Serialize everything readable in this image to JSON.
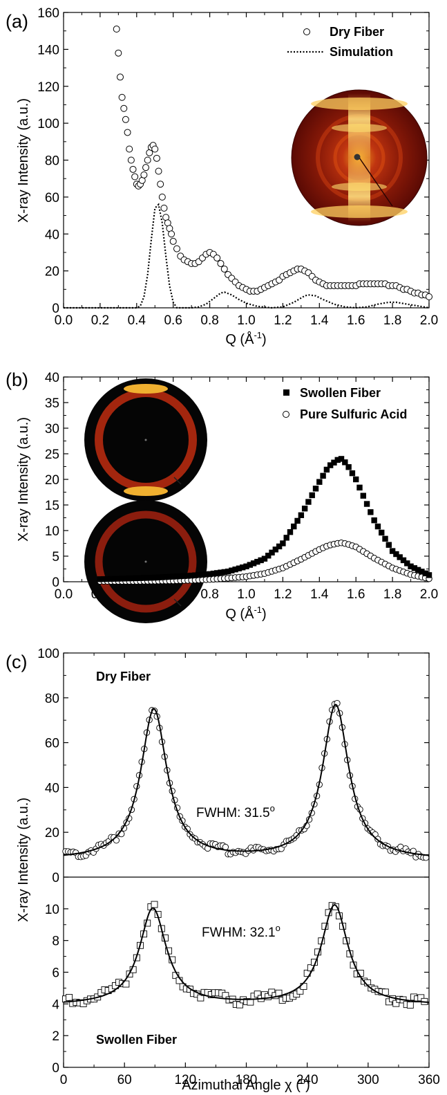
{
  "panels": [
    {
      "label": "(a)",
      "xlabel": "Q (Å",
      "xlabel_sup": "-1",
      "xlabel_tail": ")",
      "ylabel": "X-ray Intensity (a.u.)",
      "legend": [
        "Dry Fiber",
        "Simulation"
      ]
    },
    {
      "label": "(b)",
      "xlabel": "Q (Å",
      "xlabel_sup": "-1",
      "xlabel_tail": ")",
      "ylabel": "X-ray Intensity (a.u.)",
      "legend": [
        "Swollen Fiber",
        "Pure Sulfuric Acid"
      ]
    },
    {
      "label": "(c)",
      "xlabel": "Azimuthal Angle χ (",
      "xlabel_sup": "o",
      "xlabel_tail": ")",
      "ylabel": "X-ray Intensity (a.u.)",
      "top_title": "Dry Fiber",
      "bottom_title": "Swollen Fiber",
      "fwhm_top": "FWHM: 31.5",
      "fwhm_top_sup": "o",
      "fwhm_bottom": "FWHM: 32.1",
      "fwhm_bottom_sup": "o"
    }
  ],
  "chart_data": [
    {
      "type": "scatter",
      "title": "",
      "xlabel": "Q (Å-1)",
      "ylabel": "X-ray Intensity (a.u.)",
      "xlim": [
        0.0,
        2.0
      ],
      "ylim": [
        0,
        160
      ],
      "xticks": [
        0.0,
        0.2,
        0.4,
        0.6,
        0.8,
        1.0,
        1.2,
        1.4,
        1.6,
        1.8,
        2.0
      ],
      "yticks": [
        0,
        20,
        40,
        60,
        80,
        100,
        120,
        140,
        160
      ],
      "legend_position": "top-right",
      "inset": "2D diffraction pattern (dry fiber)",
      "series": [
        {
          "name": "Dry Fiber",
          "marker": "open-circle",
          "x": [
            0.29,
            0.3,
            0.31,
            0.32,
            0.33,
            0.34,
            0.35,
            0.36,
            0.37,
            0.38,
            0.39,
            0.4,
            0.41,
            0.42,
            0.43,
            0.44,
            0.45,
            0.46,
            0.47,
            0.48,
            0.49,
            0.5,
            0.51,
            0.52,
            0.53,
            0.54,
            0.55,
            0.56,
            0.57,
            0.58,
            0.59,
            0.6,
            0.62,
            0.64,
            0.66,
            0.68,
            0.7,
            0.72,
            0.74,
            0.76,
            0.78,
            0.8,
            0.82,
            0.84,
            0.86,
            0.88,
            0.9,
            0.92,
            0.94,
            0.96,
            0.98,
            1.0,
            1.02,
            1.04,
            1.06,
            1.08,
            1.1,
            1.12,
            1.14,
            1.16,
            1.18,
            1.2,
            1.22,
            1.24,
            1.26,
            1.28,
            1.3,
            1.32,
            1.34,
            1.36,
            1.38,
            1.4,
            1.42,
            1.44,
            1.46,
            1.48,
            1.5,
            1.52,
            1.54,
            1.56,
            1.58,
            1.6,
            1.62,
            1.64,
            1.66,
            1.68,
            1.7,
            1.72,
            1.74,
            1.76,
            1.78,
            1.8,
            1.82,
            1.84,
            1.86,
            1.88,
            1.9,
            1.92,
            1.94,
            1.96,
            1.98,
            2.0
          ],
          "y": [
            151,
            138,
            125,
            114,
            108,
            102,
            95,
            86,
            80,
            75,
            71,
            67,
            66,
            67,
            69,
            72,
            76,
            80,
            84,
            87,
            88,
            86,
            81,
            74,
            67,
            60,
            54,
            49,
            46,
            43,
            40,
            36,
            32,
            28,
            26,
            25,
            24,
            24,
            25,
            27,
            29,
            30,
            29,
            27,
            24,
            21,
            18,
            16,
            14,
            12,
            11,
            10,
            9,
            9,
            9,
            10,
            11,
            12,
            13,
            14,
            15,
            17,
            18,
            19,
            20,
            21,
            21,
            20,
            19,
            17,
            15,
            14,
            13,
            12,
            12,
            12,
            12,
            12,
            12,
            12,
            12,
            12,
            13,
            13,
            13,
            13,
            13,
            13,
            13,
            13,
            12,
            12,
            12,
            11,
            10,
            10,
            9,
            8,
            8,
            7,
            7,
            6
          ]
        },
        {
          "name": "Simulation",
          "line": "dotted",
          "x": [
            0.0,
            0.4,
            0.42,
            0.44,
            0.46,
            0.48,
            0.5,
            0.52,
            0.54,
            0.56,
            0.58,
            0.6,
            0.62,
            0.7,
            0.74,
            0.78,
            0.82,
            0.86,
            0.88,
            0.92,
            0.96,
            1.0,
            1.06,
            1.14,
            1.2,
            1.26,
            1.32,
            1.34,
            1.38,
            1.42,
            1.48,
            1.54,
            1.6,
            1.66,
            1.72,
            1.78,
            1.82,
            1.88,
            1.94,
            2.0
          ],
          "y": [
            0,
            0,
            1,
            6,
            18,
            37,
            54,
            56,
            46,
            28,
            12,
            3,
            0,
            0,
            0.5,
            2,
            5,
            8,
            8.5,
            7,
            4.5,
            2.5,
            0.8,
            0,
            0.5,
            3,
            6.5,
            7,
            6.5,
            4.5,
            2,
            0.5,
            0,
            0.5,
            2,
            3,
            3,
            2,
            1,
            0
          ]
        }
      ]
    },
    {
      "type": "scatter",
      "title": "",
      "xlabel": "Q (Å-1)",
      "ylabel": "X-ray Intensity (a.u.)",
      "xlim": [
        0.0,
        2.0
      ],
      "ylim": [
        0,
        40
      ],
      "xticks": [
        0.0,
        0.2,
        0.4,
        0.6,
        0.8,
        1.0,
        1.2,
        1.4,
        1.6,
        1.8,
        2.0
      ],
      "yticks": [
        0,
        5,
        10,
        15,
        20,
        25,
        30,
        35,
        40
      ],
      "legend_position": "top-right",
      "inset": "2D diffraction patterns (swollen fiber, pure sulfuric acid)",
      "series": [
        {
          "name": "Swollen Fiber",
          "marker": "filled-square",
          "peak": 1.52,
          "amplitude": 23.5,
          "x_range": [
            0.2,
            2.0
          ],
          "x": [
            0.2,
            0.3,
            0.4,
            0.5,
            0.6,
            0.7,
            0.8,
            0.9,
            1.0,
            1.1,
            1.2,
            1.3,
            1.4,
            1.45,
            1.5,
            1.52,
            1.55,
            1.6,
            1.7,
            1.8,
            1.9,
            2.0
          ],
          "y": [
            0.5,
            0.6,
            0.7,
            0.8,
            1.0,
            1.2,
            1.5,
            2.0,
            3.0,
            4.5,
            7.5,
            13.0,
            19.5,
            22.5,
            23.8,
            24.0,
            23.0,
            20.0,
            12.0,
            6.0,
            3.0,
            1.3
          ]
        },
        {
          "name": "Pure Sulfuric Acid",
          "marker": "open-circle",
          "x": [
            0.2,
            0.3,
            0.4,
            0.5,
            0.6,
            0.7,
            0.8,
            0.9,
            1.0,
            1.1,
            1.2,
            1.3,
            1.4,
            1.45,
            1.5,
            1.52,
            1.55,
            1.6,
            1.7,
            1.8,
            1.9,
            2.0
          ],
          "y": [
            0.1,
            0.1,
            0.1,
            0.15,
            0.2,
            0.3,
            0.45,
            0.7,
            1.0,
            1.6,
            2.7,
            4.4,
            6.3,
            7.1,
            7.5,
            7.6,
            7.4,
            6.8,
            4.6,
            2.7,
            1.4,
            0.6
          ]
        }
      ]
    },
    {
      "type": "scatter",
      "title": "",
      "xlabel": "Azimuthal Angle χ (o)",
      "ylabel": "X-ray Intensity (a.u.)",
      "xlim": [
        0,
        360
      ],
      "xticks": [
        0,
        60,
        120,
        180,
        240,
        300,
        360
      ],
      "subplots": [
        {
          "name": "Dry Fiber",
          "ylim": [
            0,
            100
          ],
          "yticks": [
            0,
            20,
            40,
            60,
            80,
            100
          ],
          "fwhm_deg": 31.5,
          "series": [
            {
              "name": "data",
              "marker": "open-circle",
              "peaks": [
                89,
                268
              ],
              "amplitudes": [
                67,
                69
              ],
              "baseline": 7.5
            },
            {
              "name": "fit",
              "line": "solid",
              "peaks": [
                89,
                268
              ],
              "amplitudes": [
                67,
                69
              ],
              "baseline": 7.5
            }
          ]
        },
        {
          "name": "Swollen Fiber",
          "ylim": [
            0,
            12
          ],
          "yticks": [
            0,
            2,
            4,
            6,
            8,
            10
          ],
          "fwhm_deg": 32.1,
          "series": [
            {
              "name": "data",
              "marker": "open-square",
              "peaks": [
                88,
                267
              ],
              "amplitudes": [
                6.1,
                6.3
              ],
              "baseline": 3.9
            },
            {
              "name": "fit",
              "line": "solid",
              "peaks": [
                88,
                267
              ],
              "amplitudes": [
                6.1,
                6.3
              ],
              "baseline": 3.9
            }
          ]
        }
      ]
    }
  ]
}
